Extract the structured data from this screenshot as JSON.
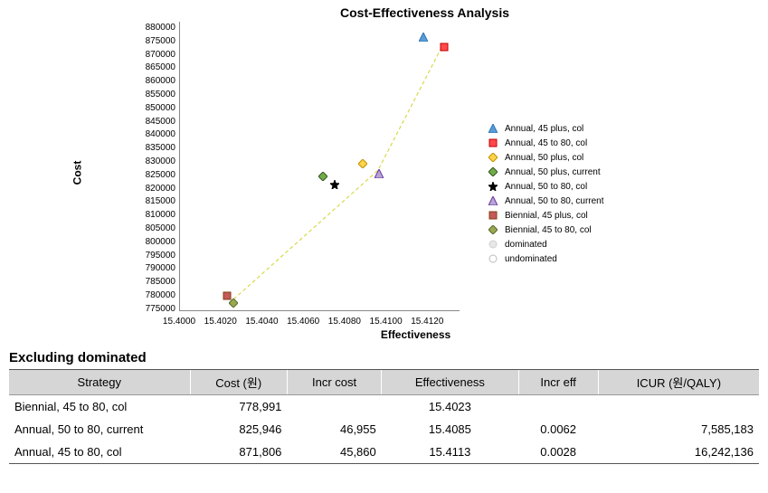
{
  "chart": {
    "title": "Cost-Effectiveness Analysis",
    "xlabel": "Effectiveness",
    "ylabel": "Cost",
    "xlim": [
      15.4,
      15.412
    ],
    "ylim": [
      775000,
      880000
    ],
    "xticks": [
      "15.4000",
      "15.4020",
      "15.4040",
      "15.4060",
      "15.4080",
      "15.4100",
      "15.4120"
    ],
    "yticks": [
      "880000",
      "875000",
      "870000",
      "865000",
      "860000",
      "855000",
      "850000",
      "845000",
      "840000",
      "835000",
      "830000",
      "825000",
      "820000",
      "815000",
      "810000",
      "805000",
      "800000",
      "795000",
      "790000",
      "785000",
      "780000",
      "775000"
    ],
    "background_color": "#ffffff",
    "axis_color": "#888888",
    "tick_fontsize": 10,
    "label_fontsize": 12,
    "title_fontsize": 14,
    "frontier_color": "#d8d84a",
    "frontier_dash": "4 3",
    "series": [
      {
        "name": "Annual, 45 plus, col",
        "shape": "triangle",
        "fill": "#5b9bd5",
        "stroke": "#2e75b6",
        "x": 15.4104,
        "y": 875500
      },
      {
        "name": "Annual, 45 to 80, col",
        "shape": "square",
        "fill": "#ff4a4a",
        "stroke": "#c00000",
        "x": 15.4113,
        "y": 871806
      },
      {
        "name": "Annual, 50 plus, col",
        "shape": "diamond",
        "fill": "#ffd34a",
        "stroke": "#bf9000",
        "x": 15.4078,
        "y": 829500
      },
      {
        "name": "Annual, 50 plus, current",
        "shape": "diamond",
        "fill": "#70ad47",
        "stroke": "#385723",
        "x": 15.4061,
        "y": 825000
      },
      {
        "name": "Annual, 50 to 80, col",
        "shape": "star",
        "fill": "#000000",
        "stroke": "#000000",
        "x": 15.4066,
        "y": 822000
      },
      {
        "name": "Annual, 50 to 80, current",
        "shape": "triangle",
        "fill": "#b4a7d6",
        "stroke": "#7030a0",
        "x": 15.4085,
        "y": 825946
      },
      {
        "name": "Biennial, 45 plus, col",
        "shape": "square",
        "fill": "#c55a5a",
        "stroke": "#843c0c",
        "x": 15.402,
        "y": 781500
      },
      {
        "name": "Biennial, 45 to 80, col",
        "shape": "diamond",
        "fill": "#9aa84f",
        "stroke": "#556b2f",
        "x": 15.4023,
        "y": 778991
      }
    ],
    "extra_legend": [
      {
        "name": "dominated",
        "shape": "circle",
        "fill": "#e8e8e8",
        "stroke": "#cfcfcf"
      },
      {
        "name": "undominated",
        "shape": "circle",
        "fill": "#ffffff",
        "stroke": "#bbbbbb"
      }
    ],
    "frontier_points": [
      {
        "x": 15.4023,
        "y": 778991
      },
      {
        "x": 15.4085,
        "y": 825946
      },
      {
        "x": 15.4113,
        "y": 871806
      }
    ]
  },
  "table": {
    "section_title": "Excluding dominated",
    "columns": [
      "Strategy",
      "Cost (원)",
      "Incr cost",
      "Effectiveness",
      "Incr eff",
      "ICUR (원/QALY)"
    ],
    "rows": [
      [
        "Biennial, 45 to 80, col",
        "778,991",
        "",
        "15.4023",
        "",
        ""
      ],
      [
        "Annual, 50 to 80, current",
        "825,946",
        "46,955",
        "15.4085",
        "0.0062",
        "7,585,183"
      ],
      [
        "Annual, 45 to 80, col",
        "871,806",
        "45,860",
        "15.4113",
        "0.0028",
        "16,242,136"
      ]
    ],
    "header_bg": "#d6d6d6",
    "border_color": "#555555"
  }
}
